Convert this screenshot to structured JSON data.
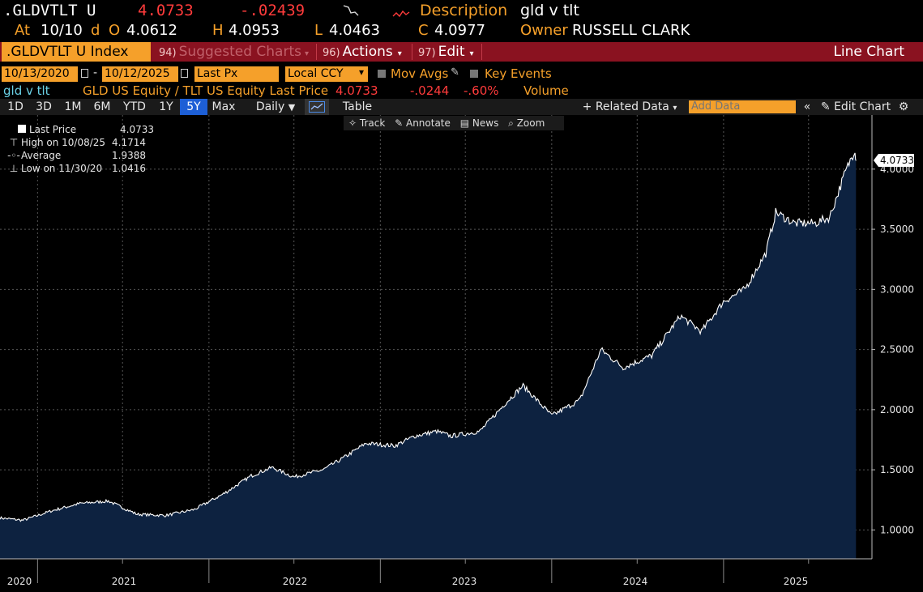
{
  "header": {
    "ticker": ".GLDVTLT U",
    "last": "4.0733",
    "change": "-.02439",
    "desc_label": "Description",
    "desc_value": "gld v tlt",
    "at_label": "At",
    "at_date": "10/10",
    "d_label": "d",
    "open_label": "O",
    "open": "4.0612",
    "high_label": "H",
    "high": "4.0953",
    "low_label": "L",
    "low": "4.0463",
    "close_label": "C",
    "close": "4.0977",
    "owner_label": "Owner",
    "owner": "RUSSELL CLARK"
  },
  "menubar": {
    "security": ".GLDVTLT U Index",
    "suggested_fk": "94)",
    "suggested": "Suggested Charts",
    "actions_fk": "96)",
    "actions": "Actions",
    "edit_fk": "97)",
    "edit": "Edit",
    "chart_type": "Line Chart"
  },
  "params": {
    "start": "10/13/2020",
    "dash": "-",
    "end": "10/12/2025",
    "px": "Last Px",
    "ccy": "Local CCY",
    "mov_avgs": "Mov Avgs",
    "key_events": "Key Events"
  },
  "series_line": {
    "name": "gld v tlt",
    "desc": "GLD US Equity / TLT US Equity Last Price",
    "last": "4.0733",
    "change": "-.0244",
    "pct": "-.60%",
    "volume": "Volume"
  },
  "toolbar": {
    "periods": [
      "1D",
      "3D",
      "1M",
      "6M",
      "YTD",
      "1Y",
      "5Y",
      "Max"
    ],
    "active_period": "5Y",
    "frequency": "Daily",
    "table": "Table",
    "related": "Related Data",
    "add_data_placeholder": "Add Data",
    "edit_chart": "Edit Chart"
  },
  "chart_tools": {
    "track": "Track",
    "annotate": "Annotate",
    "news": "News",
    "zoom": "Zoom"
  },
  "legend": {
    "last_label": "Last Price",
    "last": "4.0733",
    "high_label": "High on 10/08/25",
    "high": "4.1714",
    "avg_label": "Average",
    "avg": "1.9388",
    "low_label": "Low on 11/30/20",
    "low": "1.0416"
  },
  "colors": {
    "orange": "#f5a02a",
    "red": "#ff3b3b",
    "menubar": "#8a1220",
    "area": "#0d2240",
    "active": "#1d5fd6"
  },
  "chart_data": {
    "type": "area",
    "x": [
      "2020-10-13",
      "2020-12-01",
      "2021-02-01",
      "2021-04-01",
      "2021-06-01",
      "2021-08-01",
      "2021-10-01",
      "2021-12-01",
      "2022-02-01",
      "2022-04-01",
      "2022-05-15",
      "2022-07-01",
      "2022-09-01",
      "2022-10-15",
      "2022-12-01",
      "2023-02-01",
      "2023-03-15",
      "2023-05-01",
      "2023-06-01",
      "2023-08-01",
      "2023-10-01",
      "2023-11-01",
      "2024-01-01",
      "2024-03-01",
      "2024-04-15",
      "2024-06-01",
      "2024-08-01",
      "2024-10-01",
      "2024-11-15",
      "2025-01-01",
      "2025-02-15",
      "2025-04-01",
      "2025-04-22",
      "2025-06-01",
      "2025-07-15",
      "2025-08-15",
      "2025-09-15",
      "2025-10-08",
      "2025-10-10"
    ],
    "values": [
      1.1,
      1.08,
      1.16,
      1.22,
      1.24,
      1.13,
      1.12,
      1.17,
      1.3,
      1.45,
      1.52,
      1.44,
      1.5,
      1.6,
      1.72,
      1.7,
      1.78,
      1.82,
      1.78,
      1.82,
      2.08,
      2.2,
      1.95,
      2.08,
      2.5,
      2.35,
      2.45,
      2.78,
      2.65,
      2.9,
      3.0,
      3.3,
      3.64,
      3.55,
      3.55,
      3.6,
      3.95,
      4.17,
      4.07
    ],
    "last_value": 4.0733,
    "y_ticks": [
      "4.0000",
      "3.5000",
      "3.0000",
      "2.5000",
      "2.0000",
      "1.5000",
      "1.0000"
    ],
    "x_ticks": [
      "2020",
      "2021",
      "2022",
      "2023",
      "2024",
      "2025"
    ],
    "ylim": [
      0.76,
      4.45
    ],
    "grid": true,
    "legend": "top-left"
  }
}
